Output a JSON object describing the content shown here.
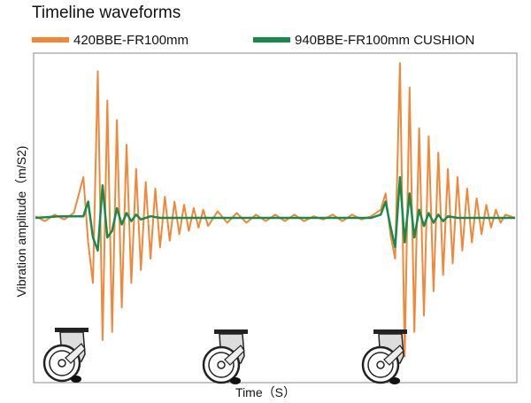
{
  "chart_data": {
    "type": "line",
    "title": "Timeline waveforms",
    "xlabel": "Time（S）",
    "ylabel": "Vibration amplitude（m/S2)",
    "grid": false,
    "legend_position": "top",
    "x_range": [
      0,
      100
    ],
    "y_range": [
      -10,
      10
    ],
    "series": [
      {
        "name": "420BBE-FR100mm",
        "color": "#f0883a",
        "x": [
          0,
          2,
          4,
          6,
          8,
          10,
          11,
          12,
          13,
          14,
          15,
          16,
          17,
          18,
          19,
          20,
          21,
          22,
          23,
          24,
          25,
          26,
          27,
          28,
          29,
          30,
          31,
          32,
          33,
          34,
          35,
          36,
          38,
          40,
          42,
          44,
          46,
          48,
          50,
          52,
          54,
          56,
          58,
          60,
          62,
          64,
          66,
          68,
          70,
          72,
          73,
          74,
          75,
          76,
          77,
          78,
          79,
          80,
          81,
          82,
          83,
          84,
          85,
          86,
          87,
          88,
          89,
          90,
          91,
          92,
          93,
          94,
          95,
          96,
          97,
          98,
          100
        ],
        "values": [
          0.1,
          -0.2,
          0.2,
          -0.1,
          0.3,
          2.5,
          -1.5,
          -4.0,
          9.0,
          -7.5,
          7.2,
          -7.0,
          6.0,
          -5.5,
          4.5,
          -4.0,
          3.0,
          -3.2,
          2.2,
          -2.5,
          1.8,
          -1.8,
          1.3,
          -1.4,
          1.0,
          -1.0,
          0.8,
          -0.8,
          0.6,
          -0.6,
          0.5,
          -0.5,
          0.4,
          -0.3,
          0.3,
          -0.3,
          0.2,
          -0.2,
          0.2,
          -0.2,
          0.2,
          -0.2,
          0.1,
          -0.1,
          0.2,
          -0.2,
          0.2,
          -0.1,
          0.1,
          0.5,
          1.5,
          -1.0,
          -2.5,
          9.5,
          -8.5,
          8.0,
          -7.0,
          5.5,
          -6.0,
          5.0,
          -4.5,
          4.0,
          -3.5,
          3.0,
          -2.8,
          2.5,
          -2.0,
          1.8,
          -1.5,
          1.2,
          -1.0,
          0.8,
          -0.6,
          0.5,
          -0.3,
          0.2,
          0.0
        ]
      },
      {
        "name": "940BBE-FR100mm CUSHION",
        "color": "#1a8a4a",
        "x": [
          0,
          5,
          10,
          11,
          12,
          13,
          14,
          15,
          16,
          17,
          18,
          19,
          20,
          21,
          22,
          24,
          26,
          28,
          30,
          35,
          40,
          45,
          50,
          55,
          60,
          65,
          70,
          72,
          73,
          74,
          75,
          76,
          77,
          78,
          79,
          80,
          81,
          82,
          83,
          84,
          85,
          86,
          88,
          90,
          95,
          100
        ],
        "values": [
          0.0,
          0.1,
          0.1,
          1.0,
          -1.2,
          -2.0,
          2.0,
          -1.2,
          -0.8,
          0.6,
          -0.4,
          0.3,
          -0.2,
          0.2,
          -0.1,
          0.1,
          0.0,
          0.0,
          0.0,
          0.0,
          0.0,
          0.0,
          0.0,
          0.0,
          0.0,
          0.0,
          0.0,
          0.2,
          1.0,
          -0.5,
          -1.8,
          2.5,
          -1.5,
          1.5,
          -1.2,
          0.5,
          -0.5,
          0.3,
          -0.3,
          0.2,
          -0.2,
          0.1,
          0.0,
          0.0,
          0.0,
          0.0
        ]
      }
    ]
  },
  "icons": [
    "caster-wheel-icon",
    "caster-wheel-icon",
    "caster-wheel-icon"
  ]
}
